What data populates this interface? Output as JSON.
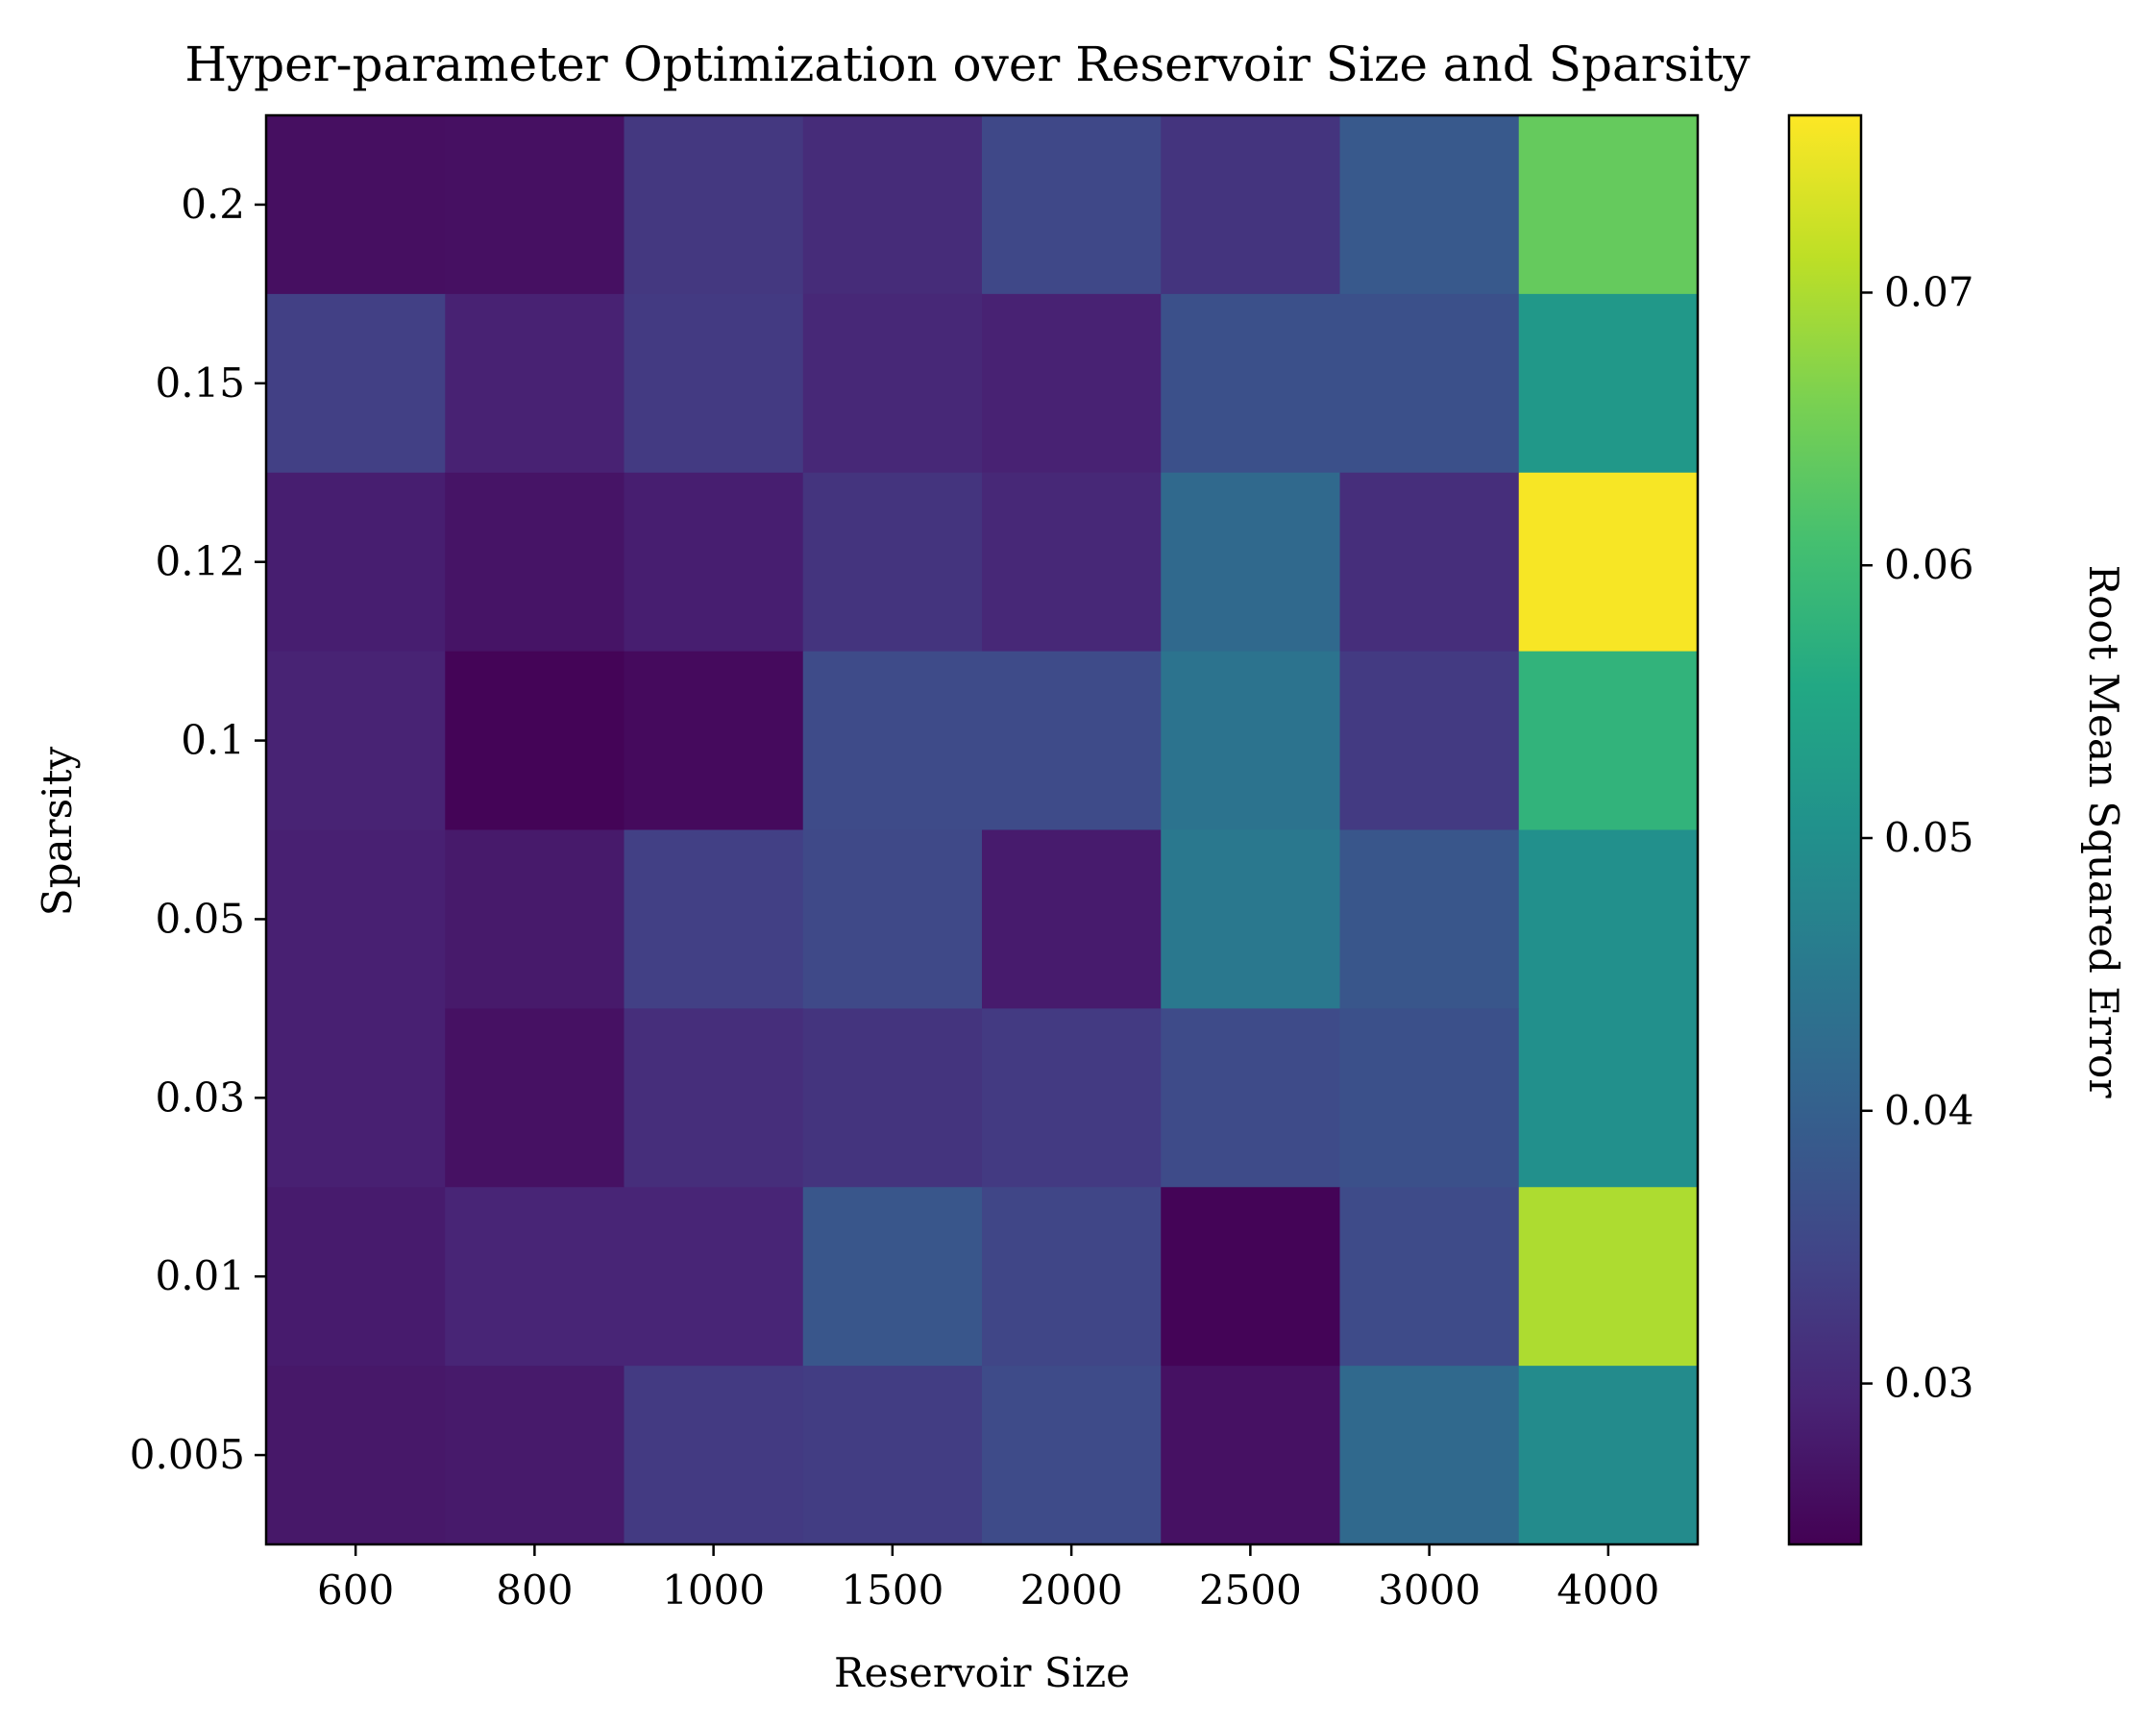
{
  "chart_data": {
    "type": "heatmap",
    "title": "Hyper-parameter Optimization over Reservoir Size and Sparsity",
    "xlabel": "Reservoir Size",
    "ylabel": "Sparsity",
    "x_categories": [
      "600",
      "800",
      "1000",
      "1500",
      "2000",
      "2500",
      "3000",
      "4000"
    ],
    "y_categories": [
      "0.2",
      "0.15",
      "0.12",
      "0.1",
      "0.05",
      "0.03",
      "0.01",
      "0.005"
    ],
    "values": [
      [
        0.0262,
        0.0264,
        0.0326,
        0.0306,
        0.0353,
        0.032,
        0.0386,
        0.064
      ],
      [
        0.034,
        0.029,
        0.033,
        0.03,
        0.029,
        0.037,
        0.037,
        0.052
      ],
      [
        0.0285,
        0.027,
        0.0285,
        0.032,
        0.03,
        0.042,
        0.031,
        0.076
      ],
      [
        0.0292,
        0.0245,
        0.0255,
        0.036,
        0.036,
        0.044,
        0.033,
        0.058
      ],
      [
        0.0288,
        0.0278,
        0.034,
        0.0355,
        0.028,
        0.045,
        0.038,
        0.05
      ],
      [
        0.0288,
        0.0265,
        0.031,
        0.032,
        0.033,
        0.036,
        0.037,
        0.05
      ],
      [
        0.028,
        0.0295,
        0.0295,
        0.038,
        0.035,
        0.0245,
        0.036,
        0.07
      ],
      [
        0.0275,
        0.0278,
        0.033,
        0.0335,
        0.036,
        0.0265,
        0.042,
        0.049
      ]
    ],
    "colorbar": {
      "label": "Root Mean Squared Error",
      "min": 0.0241,
      "max": 0.0765,
      "ticks": [
        0.03,
        0.04,
        0.05,
        0.06,
        0.07
      ],
      "tick_labels": [
        "0.03",
        "0.04",
        "0.05",
        "0.06",
        "0.07"
      ],
      "colormap": "viridis"
    }
  }
}
